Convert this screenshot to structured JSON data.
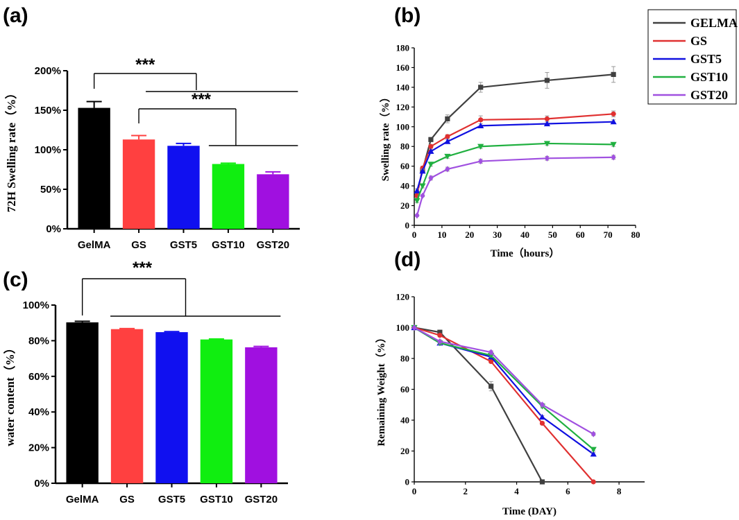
{
  "chart_data": [
    {
      "panel": "(a)",
      "type": "bar",
      "categories": [
        "GelMA",
        "GS",
        "GST5",
        "GST10",
        "GST20"
      ],
      "values": [
        153,
        113,
        105,
        82,
        69
      ],
      "errors": [
        8,
        5,
        3,
        1,
        3
      ],
      "colors": [
        "#000000",
        "#ff4040",
        "#1010f0",
        "#10ee10",
        "#a010e0"
      ],
      "ylabel": "72H Swelling rate（%）",
      "ylim": [
        0,
        200
      ],
      "yticks": [
        0,
        50,
        100,
        150,
        200
      ],
      "ytick_labels": [
        "0%",
        "50%",
        "100%",
        "150%",
        "200%"
      ],
      "significance": [
        "***",
        "***"
      ]
    },
    {
      "panel": "(b)",
      "type": "line",
      "xlabel": "Time（hours）",
      "ylabel": "Swelling rate（%）",
      "xlim": [
        0,
        80
      ],
      "ylim": [
        0,
        180
      ],
      "xticks": [
        0,
        10,
        20,
        30,
        40,
        50,
        60,
        70,
        80
      ],
      "yticks": [
        0,
        20,
        40,
        60,
        80,
        100,
        120,
        140,
        160,
        180
      ],
      "x": [
        1,
        3,
        6,
        12,
        24,
        48,
        72
      ],
      "series": [
        {
          "name": "GELMA",
          "color": "#404040",
          "values": [
            32,
            56,
            87,
            108,
            140,
            147,
            153
          ],
          "errors": [
            2,
            2,
            2,
            4,
            5,
            8,
            8
          ]
        },
        {
          "name": "GS",
          "color": "#e03030",
          "values": [
            30,
            58,
            80,
            90,
            107,
            108,
            113
          ],
          "errors": [
            2,
            2,
            2,
            2,
            4,
            3,
            3
          ]
        },
        {
          "name": "GST5",
          "color": "#1010e0",
          "values": [
            35,
            55,
            75,
            85,
            101,
            103,
            105
          ],
          "errors": [
            2,
            2,
            2,
            2,
            2,
            2,
            2
          ]
        },
        {
          "name": "GST10",
          "color": "#20b040",
          "values": [
            25,
            40,
            62,
            70,
            80,
            83,
            82
          ],
          "errors": [
            2,
            2,
            2,
            2,
            2,
            2,
            2
          ]
        },
        {
          "name": "GST20",
          "color": "#a050e0",
          "values": [
            10,
            30,
            48,
            57,
            65,
            68,
            69
          ],
          "errors": [
            1,
            1,
            2,
            2,
            2,
            2,
            2
          ]
        }
      ]
    },
    {
      "panel": "(c)",
      "type": "bar",
      "categories": [
        "GelMA",
        "GS",
        "GST5",
        "GST10",
        "GST20"
      ],
      "values": [
        90.3,
        86.5,
        84.8,
        80.7,
        76.3
      ],
      "errors": [
        0.6,
        0.3,
        0.3,
        0.3,
        0.5
      ],
      "colors": [
        "#000000",
        "#ff4040",
        "#1010f0",
        "#10ee10",
        "#a010e0"
      ],
      "ylabel": "water content（%）",
      "ylim": [
        0,
        100
      ],
      "yticks": [
        0,
        20,
        40,
        60,
        80,
        100
      ],
      "ytick_labels": [
        "0%",
        "20%",
        "40%",
        "60%",
        "80%",
        "100%"
      ],
      "significance": [
        "***"
      ]
    },
    {
      "panel": "(d)",
      "type": "line",
      "xlabel": "Time (DAY)",
      "ylabel": "Remaining Weight（%）",
      "xlim": [
        0,
        9
      ],
      "ylim": [
        0,
        120
      ],
      "xticks": [
        0,
        2,
        4,
        6,
        8
      ],
      "yticks": [
        0,
        20,
        40,
        60,
        80,
        100,
        120
      ],
      "series": [
        {
          "name": "GELMA",
          "color": "#404040",
          "x": [
            0,
            1,
            3,
            5
          ],
          "values": [
            100,
            97,
            62,
            0
          ],
          "errors": [
            0,
            1,
            3,
            0
          ]
        },
        {
          "name": "GS",
          "color": "#e03030",
          "x": [
            0,
            1,
            3,
            5,
            7
          ],
          "values": [
            100,
            95,
            78,
            38,
            0
          ],
          "errors": [
            0,
            1,
            1,
            1,
            0
          ]
        },
        {
          "name": "GST5",
          "color": "#1010e0",
          "x": [
            0,
            1,
            3,
            5,
            7
          ],
          "values": [
            100,
            90,
            81,
            42,
            18
          ],
          "errors": [
            0,
            1,
            1,
            1,
            1
          ]
        },
        {
          "name": "GST10",
          "color": "#20b040",
          "x": [
            0,
            1,
            3,
            5,
            7
          ],
          "values": [
            100,
            90,
            82,
            49,
            21
          ],
          "errors": [
            0,
            1,
            1,
            1,
            1
          ]
        },
        {
          "name": "GST20",
          "color": "#a050e0",
          "x": [
            0,
            1,
            3,
            5,
            7
          ],
          "values": [
            100,
            91,
            84,
            50,
            31
          ],
          "errors": [
            0,
            1,
            1,
            1,
            1
          ]
        }
      ]
    }
  ],
  "legend": [
    "GELMA",
    "GS",
    "GST5",
    "GST10",
    "GST20"
  ]
}
